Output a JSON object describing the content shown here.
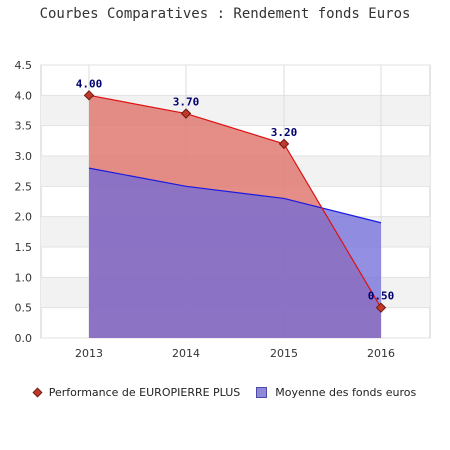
{
  "chart_data": {
    "type": "area",
    "title": "Courbes Comparatives : Rendement fonds Euros",
    "categories": [
      "2013",
      "2014",
      "2015",
      "2016"
    ],
    "ylim": [
      0,
      4.5
    ],
    "yticks": [
      "0.0",
      "0.5",
      "1.0",
      "1.5",
      "2.0",
      "2.5",
      "3.0",
      "3.5",
      "4.0",
      "4.5"
    ],
    "grid": true,
    "legend_position": "bottom",
    "series": [
      {
        "name": "Performance de EUROPIERRE PLUS",
        "values": [
          4.0,
          3.7,
          3.2,
          0.5
        ],
        "labels": [
          "4.00",
          "3.70",
          "3.20",
          "0.50"
        ],
        "color": "#e07a73",
        "line_color": "#dd1111",
        "marker": "diamond"
      },
      {
        "name": "Moyenne des fonds euros",
        "values": [
          2.8,
          2.5,
          2.3,
          1.9
        ],
        "color": "#6f6ad8",
        "line_color": "#1a1ae0",
        "marker": "square"
      }
    ]
  },
  "colors": {
    "overlap": "#8a5aa0",
    "band": "#f2f2f2",
    "axis_text": "#333333",
    "label_text": "#00006e"
  }
}
